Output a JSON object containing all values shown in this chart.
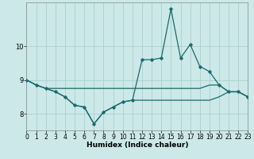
{
  "xlabel": "Humidex (Indice chaleur)",
  "bg_color": "#cce8e8",
  "grid_color": "#aad0d0",
  "line_color": "#1a6b6b",
  "x": [
    0,
    1,
    2,
    3,
    4,
    5,
    6,
    7,
    8,
    9,
    10,
    11,
    12,
    13,
    14,
    15,
    16,
    17,
    18,
    19,
    20,
    21,
    22,
    23
  ],
  "y_main": [
    9.0,
    8.85,
    8.75,
    8.65,
    8.5,
    8.25,
    8.2,
    7.7,
    8.05,
    8.2,
    8.35,
    8.4,
    9.6,
    9.6,
    9.65,
    11.1,
    9.65,
    10.05,
    9.4,
    9.25,
    8.85,
    8.65,
    8.65,
    8.5
  ],
  "y_upper_flat": [
    9.0,
    8.85,
    8.75,
    8.75,
    8.75,
    8.75,
    8.75,
    8.75,
    8.75,
    8.75,
    8.75,
    8.75,
    8.75,
    8.75,
    8.75,
    8.75,
    8.75,
    8.75,
    8.75,
    8.85,
    8.85,
    8.65,
    8.65,
    8.5
  ],
  "y_lower_flat": [
    9.0,
    8.85,
    8.75,
    8.65,
    8.5,
    8.25,
    8.2,
    7.7,
    8.05,
    8.2,
    8.35,
    8.4,
    8.4,
    8.4,
    8.4,
    8.4,
    8.4,
    8.4,
    8.4,
    8.4,
    8.5,
    8.65,
    8.65,
    8.5
  ],
  "ylim": [
    7.5,
    11.3
  ],
  "yticks": [
    8,
    9,
    10
  ],
  "xlim": [
    0,
    23
  ],
  "xticks": [
    0,
    1,
    2,
    3,
    4,
    5,
    6,
    7,
    8,
    9,
    10,
    11,
    12,
    13,
    14,
    15,
    16,
    17,
    18,
    19,
    20,
    21,
    22,
    23
  ],
  "xlabel_fontsize": 6.5,
  "tick_fontsize": 5.5
}
